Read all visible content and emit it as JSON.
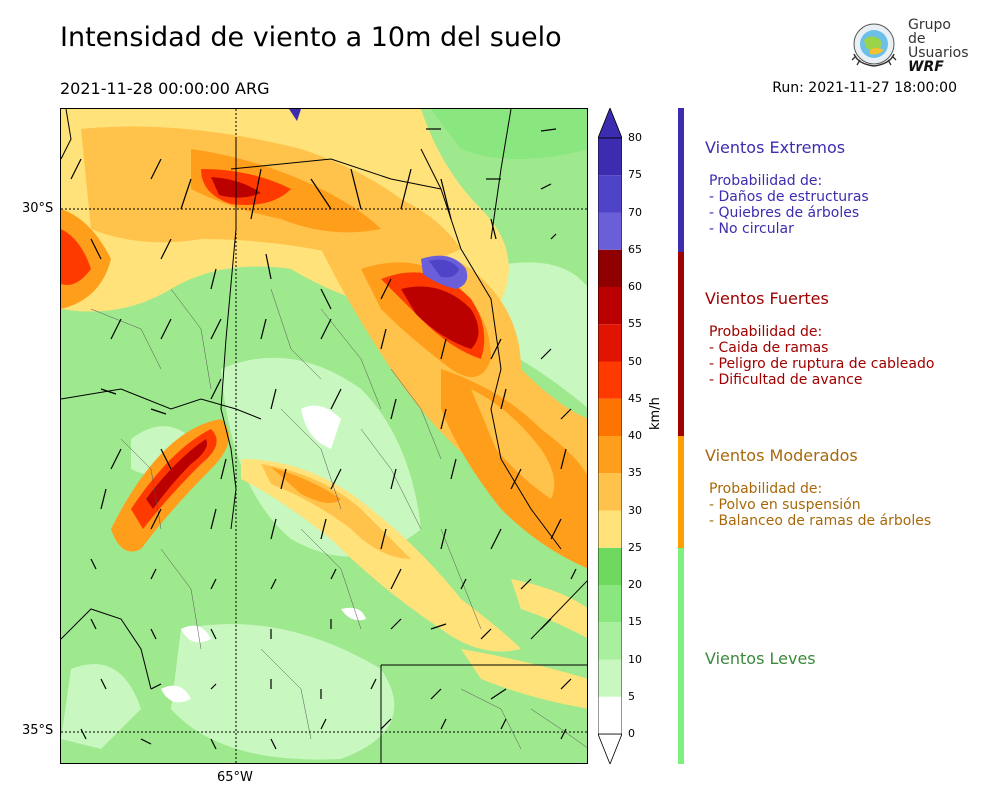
{
  "header": {
    "title": "Intensidad de viento a 10m del suelo",
    "valid_time": "2021-11-28 00:00:00 ARG",
    "run": "Run: 2021-11-27 18:00:00"
  },
  "logo": {
    "line1": "Grupo de",
    "line2": "Usuarios",
    "line3": "WRF",
    "icon": "globe-emblem-icon"
  },
  "map": {
    "lat_labels": [
      "30°S",
      "35°S"
    ],
    "lon_labels": [
      "65°W"
    ],
    "wind_arrow_icon": "wind-arrow-icon"
  },
  "colorbar": {
    "unit": "km/h",
    "ticks": [
      "0",
      "5",
      "10",
      "15",
      "20",
      "25",
      "30",
      "35",
      "40",
      "45",
      "50",
      "55",
      "60",
      "65",
      "70",
      "75",
      "80"
    ],
    "colors": [
      "#ffffff",
      "#c8f7c0",
      "#a8ef9e",
      "#8ae67e",
      "#6ed85f",
      "#ffe27a",
      "#ffc24a",
      "#ff9e1a",
      "#ff7300",
      "#ff3a00",
      "#e01400",
      "#bb0000",
      "#8f0000",
      "#6a5fd8",
      "#4f43c8",
      "#3b2cb0"
    ]
  },
  "legend": {
    "categories": [
      {
        "title": "Vientos Extremos",
        "color": "#3b2cb0",
        "subtitle": "Probabilidad de:",
        "items": [
          "- Daños de estructuras",
          "- Quiebres de árboles",
          "- No circular"
        ]
      },
      {
        "title": "Vientos Fuertes",
        "color": "#a00000",
        "subtitle": "Probabilidad de:",
        "items": [
          "- Caida de ramas",
          "- Peligro de ruptura de cableado",
          "- Dificultad de avance"
        ]
      },
      {
        "title": "Vientos Moderados",
        "color": "#a8680a",
        "bar_color": "#ff9e00",
        "subtitle": "Probabilidad de:",
        "items": [
          "- Polvo en suspensión",
          "- Balanceo de ramas de árboles"
        ]
      },
      {
        "title": "Vientos Leves",
        "color": "#3a8a3a",
        "bar_color": "#7ef07e",
        "subtitle": "",
        "items": []
      }
    ]
  }
}
